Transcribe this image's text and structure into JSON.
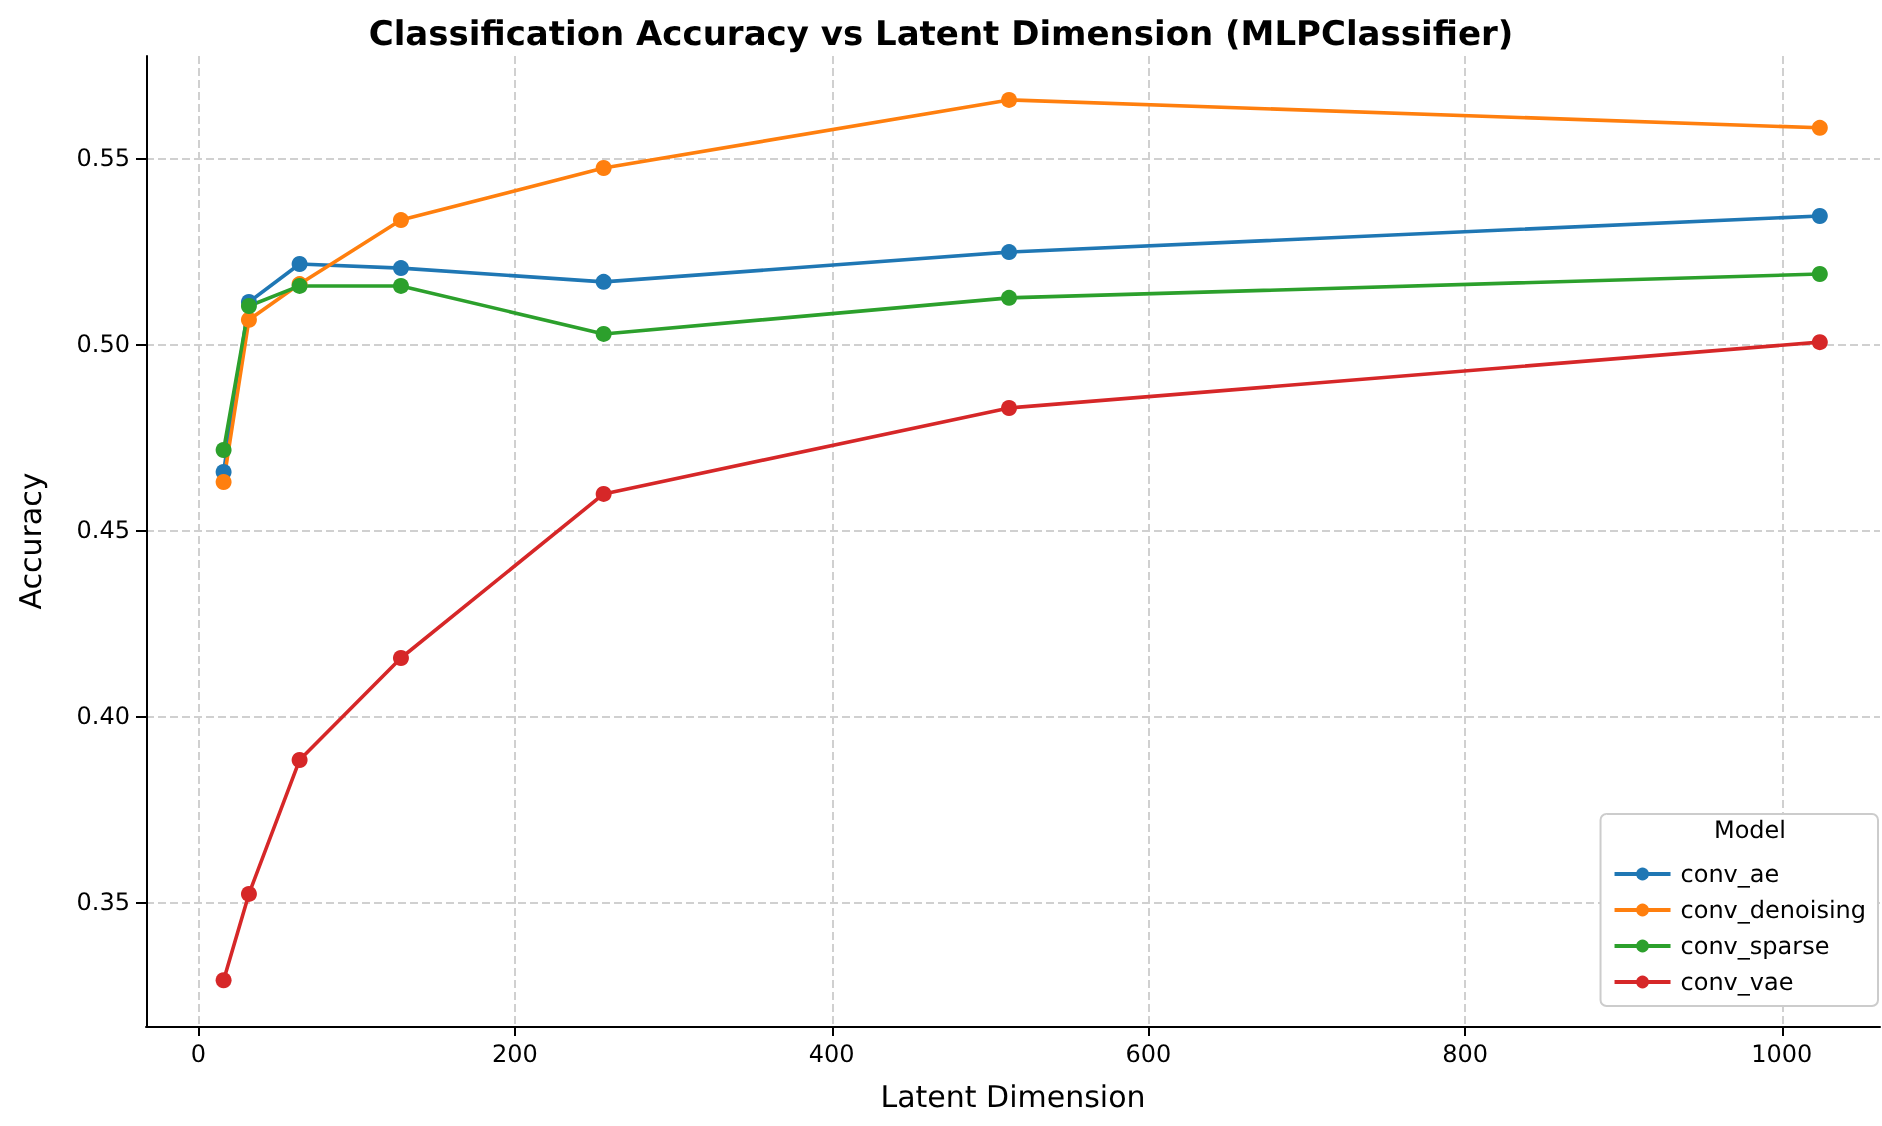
{
  "chart_data": {
    "type": "line",
    "title": "Classification Accuracy vs Latent Dimension (MLPClassifier)",
    "xlabel": "Latent Dimension",
    "ylabel": "Accuracy",
    "legend_title": "Model",
    "x": [
      16,
      32,
      64,
      128,
      256,
      512,
      1024
    ],
    "series": [
      {
        "name": "conv_ae",
        "color": "#1f77b4",
        "values": [
          0.4656,
          0.5113,
          0.5215,
          0.5204,
          0.5167,
          0.5247,
          0.5344
        ]
      },
      {
        "name": "conv_denoising",
        "color": "#ff7f0e",
        "values": [
          0.4629,
          0.5065,
          0.5161,
          0.5333,
          0.5473,
          0.5656,
          0.5581
        ]
      },
      {
        "name": "conv_sparse",
        "color": "#2ca02c",
        "values": [
          0.4715,
          0.5102,
          0.5156,
          0.5156,
          0.5027,
          0.5124,
          0.5188
        ]
      },
      {
        "name": "conv_vae",
        "color": "#d62728",
        "values": [
          0.329,
          0.3522,
          0.3882,
          0.4156,
          0.4597,
          0.4828,
          0.5005
        ]
      }
    ],
    "xlim": [
      -33,
      1062
    ],
    "xticks": [
      0,
      200,
      400,
      600,
      800,
      1000
    ],
    "ylim": [
      0.3167,
      0.5774
    ],
    "yticks": [
      {
        "value": 0.35,
        "label": "0.35"
      },
      {
        "value": 0.4,
        "label": "0.40"
      },
      {
        "value": 0.45,
        "label": "0.45"
      },
      {
        "value": 0.5,
        "label": "0.50"
      },
      {
        "value": 0.55,
        "label": "0.55"
      }
    ],
    "grid": true,
    "legend": "bottom right",
    "marker": "circle",
    "line_style": "solid"
  }
}
